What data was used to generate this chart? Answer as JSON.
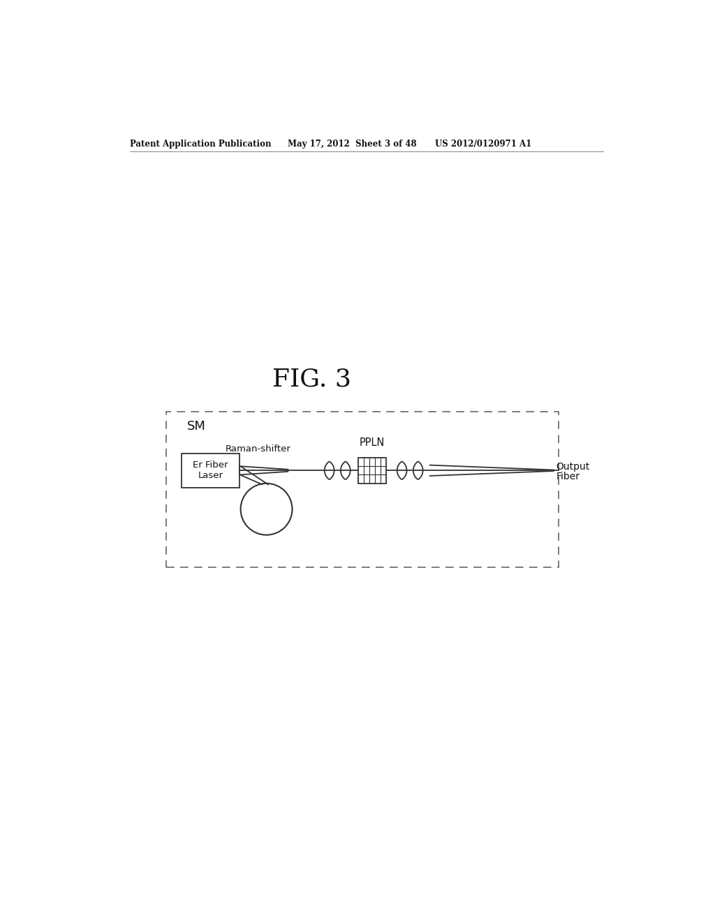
{
  "bg_color": "#ffffff",
  "header_left": "Patent Application Publication",
  "header_mid": "May 17, 2012  Sheet 3 of 48",
  "header_right": "US 2012/0120971 A1",
  "fig_label": "FIG. 3",
  "sm_label": "SM",
  "ppln_label": "PPLN",
  "output_label": "Output",
  "fiber_label": "Fiber",
  "raman_label": "Raman-shifter",
  "laser_label": "Er Fiber\nLaser",
  "line_color": "#333333",
  "box_color": "#333333"
}
